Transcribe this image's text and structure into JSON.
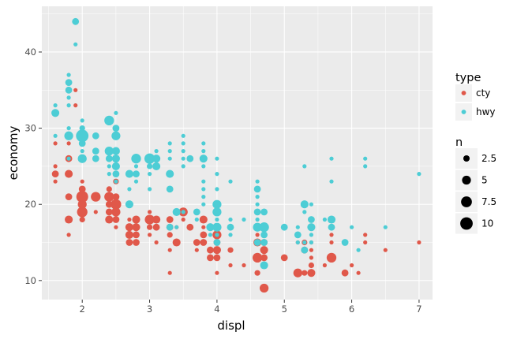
{
  "chart_data": {
    "type": "scatter",
    "xlabel": "displ",
    "ylabel": "economy",
    "xlim": [
      1.4,
      7.2
    ],
    "ylim": [
      7.5,
      46
    ],
    "x_ticks": [
      2,
      3,
      4,
      5,
      6,
      7
    ],
    "y_ticks": [
      10,
      20,
      30,
      40
    ],
    "grid": true,
    "legend_position": "right",
    "colors": {
      "cty": "#E0584A",
      "hwy": "#4DCDD5",
      "panel": "#EBEBEB",
      "grid": "#FFFFFF"
    },
    "size_legend": {
      "title": "n",
      "entries": [
        {
          "label": "2.5",
          "value": 2.5
        },
        {
          "label": "5",
          "value": 5
        },
        {
          "label": "7.5",
          "value": 7.5
        },
        {
          "label": "10",
          "value": 10
        }
      ]
    },
    "color_legend": {
      "title": "type",
      "entries": [
        {
          "label": "cty",
          "series": "cty"
        },
        {
          "label": "hwy",
          "series": "hwy"
        }
      ]
    },
    "series": [
      {
        "name": "cty",
        "points": [
          [
            1.6,
            24,
            3
          ],
          [
            1.6,
            23,
            1
          ],
          [
            1.6,
            25,
            1
          ],
          [
            1.6,
            28,
            1
          ],
          [
            1.8,
            24,
            4
          ],
          [
            1.8,
            21,
            3
          ],
          [
            1.8,
            18,
            4
          ],
          [
            1.8,
            16,
            1
          ],
          [
            1.8,
            26,
            3
          ],
          [
            1.8,
            28,
            1
          ],
          [
            1.8,
            29,
            1
          ],
          [
            1.9,
            33,
            1
          ],
          [
            1.9,
            35,
            1
          ],
          [
            2.0,
            21,
            9
          ],
          [
            2.0,
            19,
            7
          ],
          [
            2.0,
            20,
            5
          ],
          [
            2.0,
            22,
            3
          ],
          [
            2.0,
            18,
            2
          ],
          [
            2.0,
            23,
            1
          ],
          [
            2.2,
            21,
            6
          ],
          [
            2.2,
            19,
            1
          ],
          [
            2.4,
            21,
            6
          ],
          [
            2.4,
            18,
            4
          ],
          [
            2.4,
            19,
            3
          ],
          [
            2.4,
            20,
            3
          ],
          [
            2.4,
            22,
            2
          ],
          [
            2.5,
            20,
            7
          ],
          [
            2.5,
            19,
            5
          ],
          [
            2.5,
            18,
            3
          ],
          [
            2.5,
            21,
            3
          ],
          [
            2.5,
            23,
            2
          ],
          [
            2.5,
            17,
            1
          ],
          [
            2.7,
            17,
            4
          ],
          [
            2.7,
            16,
            4
          ],
          [
            2.7,
            15,
            3
          ],
          [
            2.7,
            18,
            1
          ],
          [
            2.8,
            17,
            4
          ],
          [
            2.8,
            18,
            4
          ],
          [
            2.8,
            15,
            3
          ],
          [
            2.8,
            16,
            3
          ],
          [
            3.0,
            18,
            6
          ],
          [
            3.0,
            17,
            2
          ],
          [
            3.0,
            16,
            1
          ],
          [
            3.0,
            19,
            1
          ],
          [
            3.1,
            18,
            4
          ],
          [
            3.1,
            17,
            3
          ],
          [
            3.1,
            15,
            1
          ],
          [
            3.3,
            17,
            3
          ],
          [
            3.3,
            18,
            3
          ],
          [
            3.3,
            16,
            2
          ],
          [
            3.3,
            14,
            1
          ],
          [
            3.3,
            11,
            1
          ],
          [
            3.4,
            15,
            4
          ],
          [
            3.4,
            17,
            1
          ],
          [
            3.5,
            19,
            5
          ],
          [
            3.5,
            18,
            1
          ],
          [
            3.6,
            17,
            3
          ],
          [
            3.7,
            15,
            3
          ],
          [
            3.7,
            14,
            1
          ],
          [
            3.8,
            18,
            4
          ],
          [
            3.8,
            16,
            3
          ],
          [
            3.8,
            15,
            3
          ],
          [
            3.8,
            17,
            1
          ],
          [
            3.9,
            14,
            3
          ],
          [
            3.9,
            13,
            3
          ],
          [
            4.0,
            16,
            5
          ],
          [
            4.0,
            14,
            4
          ],
          [
            4.0,
            15,
            3
          ],
          [
            4.0,
            13,
            3
          ],
          [
            4.0,
            17,
            2
          ],
          [
            4.0,
            11,
            1
          ],
          [
            4.2,
            14,
            2
          ],
          [
            4.2,
            12,
            1
          ],
          [
            4.4,
            12,
            1
          ],
          [
            4.6,
            13,
            6
          ],
          [
            4.6,
            15,
            4
          ],
          [
            4.6,
            11,
            2
          ],
          [
            4.6,
            16,
            1
          ],
          [
            4.7,
            9,
            5
          ],
          [
            4.7,
            14,
            4
          ],
          [
            4.7,
            13,
            3
          ],
          [
            4.7,
            15,
            3
          ],
          [
            4.7,
            17,
            2
          ],
          [
            4.7,
            12,
            1
          ],
          [
            5.0,
            13,
            3
          ],
          [
            5.2,
            11,
            5
          ],
          [
            5.2,
            15,
            1
          ],
          [
            5.3,
            14,
            3
          ],
          [
            5.3,
            11,
            2
          ],
          [
            5.3,
            15,
            2
          ],
          [
            5.4,
            11,
            4
          ],
          [
            5.4,
            12,
            2
          ],
          [
            5.4,
            13,
            1
          ],
          [
            5.4,
            14,
            1
          ],
          [
            5.4,
            15,
            1
          ],
          [
            5.6,
            12,
            1
          ],
          [
            5.7,
            13,
            6
          ],
          [
            5.7,
            15,
            1
          ],
          [
            5.7,
            16,
            1
          ],
          [
            5.9,
            11,
            3
          ],
          [
            6.0,
            12,
            1
          ],
          [
            6.1,
            11,
            1
          ],
          [
            6.2,
            15,
            1
          ],
          [
            6.2,
            16,
            1
          ],
          [
            6.5,
            14,
            1
          ],
          [
            7.0,
            15,
            1
          ]
        ]
      },
      {
        "name": "hwy",
        "points": [
          [
            1.6,
            32,
            4
          ],
          [
            1.6,
            33,
            1
          ],
          [
            1.6,
            29,
            1
          ],
          [
            1.8,
            29,
            5
          ],
          [
            1.8,
            36,
            3
          ],
          [
            1.8,
            35,
            3
          ],
          [
            1.8,
            37,
            1
          ],
          [
            1.8,
            34,
            1
          ],
          [
            1.8,
            33,
            1
          ],
          [
            1.8,
            30,
            1
          ],
          [
            1.8,
            26,
            1
          ],
          [
            1.9,
            44,
            3
          ],
          [
            1.9,
            41,
            1
          ],
          [
            2.0,
            29,
            10
          ],
          [
            2.0,
            26,
            5
          ],
          [
            2.0,
            28,
            3
          ],
          [
            2.0,
            30,
            2
          ],
          [
            2.0,
            31,
            1
          ],
          [
            2.0,
            27,
            1
          ],
          [
            2.2,
            27,
            3
          ],
          [
            2.2,
            26,
            3
          ],
          [
            2.2,
            29,
            3
          ],
          [
            2.4,
            31,
            6
          ],
          [
            2.4,
            27,
            5
          ],
          [
            2.4,
            26,
            3
          ],
          [
            2.4,
            24,
            1
          ],
          [
            2.4,
            25,
            1
          ],
          [
            2.5,
            29,
            5
          ],
          [
            2.5,
            27,
            4
          ],
          [
            2.5,
            26,
            4
          ],
          [
            2.5,
            25,
            4
          ],
          [
            2.5,
            24,
            3
          ],
          [
            2.5,
            30,
            3
          ],
          [
            2.5,
            32,
            1
          ],
          [
            2.5,
            23,
            1
          ],
          [
            2.7,
            24,
            4
          ],
          [
            2.7,
            20,
            4
          ],
          [
            2.7,
            22,
            1
          ],
          [
            2.8,
            26,
            6
          ],
          [
            2.8,
            24,
            3
          ],
          [
            2.8,
            23,
            1
          ],
          [
            2.8,
            25,
            1
          ],
          [
            3.0,
            26,
            7
          ],
          [
            3.0,
            25,
            2
          ],
          [
            3.0,
            24,
            1
          ],
          [
            3.0,
            22,
            1
          ],
          [
            3.1,
            26,
            4
          ],
          [
            3.1,
            25,
            4
          ],
          [
            3.1,
            27,
            1
          ],
          [
            3.3,
            24,
            4
          ],
          [
            3.3,
            22,
            3
          ],
          [
            3.3,
            17,
            3
          ],
          [
            3.3,
            26,
            1
          ],
          [
            3.3,
            27,
            1
          ],
          [
            3.3,
            28,
            1
          ],
          [
            3.4,
            19,
            4
          ],
          [
            3.4,
            17,
            1
          ],
          [
            3.5,
            29,
            1
          ],
          [
            3.5,
            28,
            1
          ],
          [
            3.5,
            27,
            1
          ],
          [
            3.5,
            26,
            1
          ],
          [
            3.5,
            25,
            1
          ],
          [
            3.5,
            19,
            1
          ],
          [
            3.6,
            26,
            3
          ],
          [
            3.7,
            19,
            3
          ],
          [
            3.7,
            18,
            1
          ],
          [
            3.8,
            26,
            4
          ],
          [
            3.8,
            28,
            1
          ],
          [
            3.8,
            27,
            1
          ],
          [
            3.8,
            25,
            1
          ],
          [
            3.8,
            23,
            1
          ],
          [
            3.8,
            22,
            1
          ],
          [
            3.8,
            21,
            1
          ],
          [
            3.8,
            20,
            1
          ],
          [
            3.9,
            17,
            4
          ],
          [
            3.9,
            16,
            1
          ],
          [
            4.0,
            20,
            5
          ],
          [
            4.0,
            19,
            5
          ],
          [
            4.0,
            17,
            5
          ],
          [
            4.0,
            15,
            3
          ],
          [
            4.0,
            26,
            1
          ],
          [
            4.0,
            24,
            1
          ],
          [
            4.0,
            22,
            1
          ],
          [
            4.0,
            18,
            1
          ],
          [
            4.0,
            16,
            1
          ],
          [
            4.2,
            17,
            3
          ],
          [
            4.2,
            23,
            1
          ],
          [
            4.2,
            18,
            1
          ],
          [
            4.2,
            16,
            1
          ],
          [
            4.4,
            18,
            1
          ],
          [
            4.6,
            22,
            3
          ],
          [
            4.6,
            19,
            3
          ],
          [
            4.6,
            17,
            5
          ],
          [
            4.6,
            15,
            3
          ],
          [
            4.6,
            23,
            1
          ],
          [
            4.6,
            21,
            1
          ],
          [
            4.6,
            20,
            1
          ],
          [
            4.6,
            18,
            1
          ],
          [
            4.7,
            17,
            6
          ],
          [
            4.7,
            19,
            3
          ],
          [
            4.7,
            16,
            3
          ],
          [
            4.7,
            15,
            3
          ],
          [
            4.7,
            12,
            4
          ],
          [
            5.0,
            17,
            3
          ],
          [
            5.2,
            16,
            3
          ],
          [
            5.2,
            17,
            1
          ],
          [
            5.2,
            15,
            1
          ],
          [
            5.3,
            20,
            4
          ],
          [
            5.3,
            14,
            3
          ],
          [
            5.3,
            25,
            1
          ],
          [
            5.3,
            19,
            1
          ],
          [
            5.3,
            15,
            1
          ],
          [
            5.4,
            17,
            4
          ],
          [
            5.4,
            18,
            3
          ],
          [
            5.4,
            20,
            1
          ],
          [
            5.4,
            16,
            1
          ],
          [
            5.4,
            15,
            1
          ],
          [
            5.6,
            18,
            1
          ],
          [
            5.7,
            18,
            4
          ],
          [
            5.7,
            17,
            3
          ],
          [
            5.7,
            26,
            1
          ],
          [
            5.7,
            23,
            1
          ],
          [
            5.9,
            15,
            3
          ],
          [
            6.0,
            17,
            1
          ],
          [
            6.1,
            14,
            1
          ],
          [
            6.2,
            26,
            1
          ],
          [
            6.2,
            25,
            1
          ],
          [
            6.5,
            17,
            1
          ],
          [
            7.0,
            24,
            1
          ]
        ]
      }
    ]
  }
}
